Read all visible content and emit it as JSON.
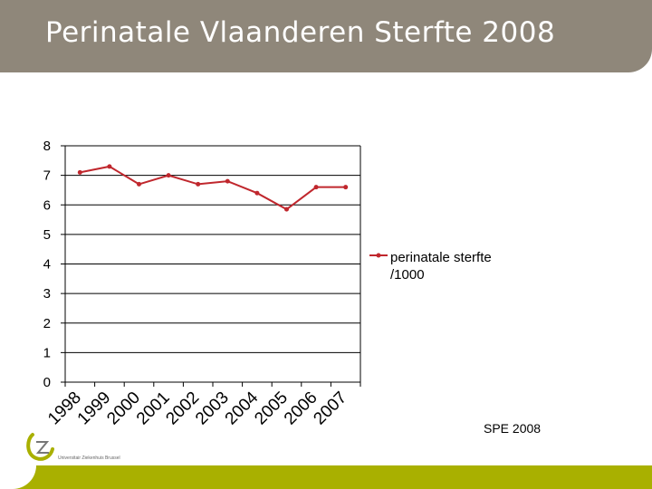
{
  "header": {
    "title": "Perinatale Vlaanderen Sterfte 2008"
  },
  "footer": {
    "credit": "SPE 2008",
    "logo_text": "Universitair Ziekenhuis Brussel",
    "logo_letters": "UZ"
  },
  "colors": {
    "header_bg": "#8f877a",
    "footer_bar": "#a9b000",
    "series": "#c0272d",
    "logo": "#a9b000"
  },
  "chart_data": {
    "type": "line",
    "title": "",
    "xlabel": "",
    "ylabel": "",
    "x": [
      "1998",
      "1999",
      "2000",
      "2001",
      "2002",
      "2003",
      "2004",
      "2005",
      "2006",
      "2007"
    ],
    "series": [
      {
        "name": "perinatale sterfte /1000",
        "legend_lines": [
          "perinatale sterfte",
          "/1000"
        ],
        "values": [
          7.1,
          7.3,
          6.7,
          7.0,
          6.7,
          6.8,
          6.4,
          5.85,
          6.6,
          6.6
        ]
      }
    ],
    "ylim": [
      0,
      8
    ],
    "yticks": [
      0,
      1,
      2,
      3,
      4,
      5,
      6,
      7,
      8
    ],
    "grid": "horizontal",
    "legend_position": "right"
  }
}
